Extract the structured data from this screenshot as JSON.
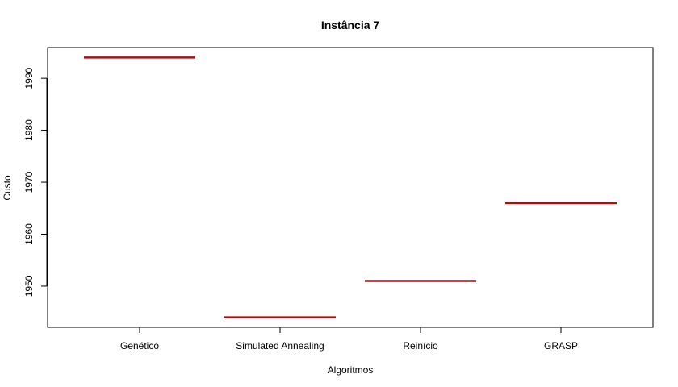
{
  "chart_data": {
    "type": "bar",
    "title": "Instância 7",
    "xlabel": "Algoritmos",
    "ylabel": "Custo",
    "categories": [
      "Genético",
      "Simulated Annealing",
      "Reinício",
      "GRASP"
    ],
    "values": [
      1994,
      1944,
      1951,
      1966
    ],
    "ylim": [
      1942.08,
      1995.92
    ],
    "yticks": [
      1950,
      1960,
      1970,
      1980,
      1990
    ],
    "grid": false,
    "bar_color": "#a50f15"
  }
}
